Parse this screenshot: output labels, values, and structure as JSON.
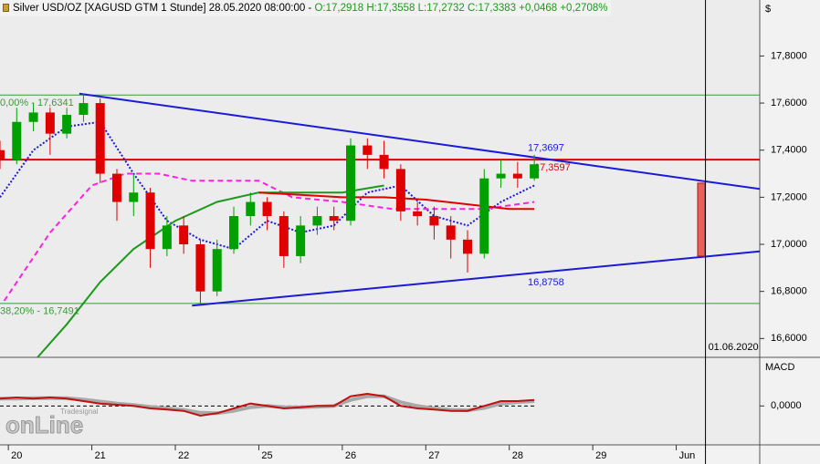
{
  "header": {
    "instrument": "Silver USD/OZ [XAGUSD GTM  1 Stunde] 28.05.2020 08:00:00 -",
    "quote": "O:17,2918 H:17,3558 L:17,2732 C:17,3383 +0,0468 +0,2708%"
  },
  "watermark": {
    "brand": "Tradesignal",
    "name": "onLine"
  },
  "chart_data": [
    {
      "type": "candlestick",
      "y_axis_title": "$",
      "x": [
        -0.1,
        0.1,
        0.3,
        0.5,
        0.7,
        0.9,
        1.1,
        1.3,
        1.5,
        1.7,
        1.9,
        2.1,
        2.3,
        2.5,
        2.7,
        2.9,
        3.1,
        3.3,
        3.5,
        3.7,
        3.9,
        4.1,
        4.3,
        4.5,
        4.7,
        4.9,
        5.1,
        5.3,
        5.5,
        5.7,
        5.9,
        6.1,
        6.3
      ],
      "open": [
        17.4,
        17.36,
        17.52,
        17.56,
        17.47,
        17.55,
        17.6,
        17.3,
        17.18,
        17.22,
        16.98,
        17.08,
        17.0,
        16.8,
        16.98,
        17.12,
        17.18,
        17.12,
        16.95,
        17.08,
        17.12,
        17.1,
        17.42,
        17.38,
        17.32,
        17.14,
        17.12,
        17.08,
        17.02,
        16.96,
        17.28,
        17.3,
        17.28
      ],
      "high": [
        17.44,
        17.58,
        17.6,
        17.58,
        17.58,
        17.64,
        17.62,
        17.32,
        17.3,
        17.24,
        17.12,
        17.12,
        17.02,
        17.02,
        17.16,
        17.22,
        17.2,
        17.14,
        17.12,
        17.16,
        17.16,
        17.45,
        17.45,
        17.44,
        17.34,
        17.18,
        17.16,
        17.12,
        17.06,
        17.32,
        17.36,
        17.35,
        17.38
      ],
      "low": [
        17.32,
        17.34,
        17.48,
        17.38,
        17.45,
        17.52,
        17.26,
        17.1,
        17.12,
        16.9,
        16.95,
        16.96,
        16.75,
        16.78,
        16.96,
        17.08,
        17.06,
        16.9,
        16.92,
        17.04,
        17.06,
        17.08,
        17.32,
        17.28,
        17.1,
        17.08,
        17.02,
        16.94,
        16.88,
        16.94,
        17.24,
        17.24,
        17.27
      ],
      "close": [
        17.36,
        17.52,
        17.56,
        17.47,
        17.55,
        17.6,
        17.3,
        17.18,
        17.22,
        16.98,
        17.08,
        17.0,
        16.8,
        16.98,
        17.12,
        17.18,
        17.12,
        16.95,
        17.08,
        17.12,
        17.1,
        17.42,
        17.38,
        17.32,
        17.14,
        17.12,
        17.08,
        17.02,
        16.96,
        17.28,
        17.3,
        17.28,
        17.34
      ],
      "up_color": "#00a000",
      "down_color": "#e00000",
      "xlim": [
        -0.1,
        9.0
      ],
      "xticks": [
        {
          "value": 0,
          "label": "20"
        },
        {
          "value": 1,
          "label": "21"
        },
        {
          "value": 2,
          "label": "22"
        },
        {
          "value": 3,
          "label": "25"
        },
        {
          "value": 4,
          "label": "26"
        },
        {
          "value": 5,
          "label": "27"
        },
        {
          "value": 6,
          "label": "28"
        },
        {
          "value": 7,
          "label": "29"
        },
        {
          "value": 8,
          "label": "Jun"
        }
      ],
      "ylim": [
        16.52,
        18.03
      ],
      "yticks": [
        {
          "value": 17.8,
          "label": "17,8000"
        },
        {
          "value": 17.6,
          "label": "17,6000"
        },
        {
          "value": 17.4,
          "label": "17,4000"
        },
        {
          "value": 17.2,
          "label": "17,2000"
        },
        {
          "value": 17.0,
          "label": "17,0000"
        },
        {
          "value": 16.8,
          "label": "16,8000"
        },
        {
          "value": 16.6,
          "label": "16,6000"
        }
      ],
      "overlays": [
        {
          "color": "#1a1ad8",
          "dash": "dotted",
          "x": [
            -0.1,
            0.3,
            0.7,
            1.1,
            1.5,
            1.9,
            2.3,
            2.7,
            3.1,
            3.5,
            3.9,
            4.3,
            4.7,
            5.1,
            5.5,
            5.9,
            6.3
          ],
          "values": [
            17.2,
            17.4,
            17.5,
            17.52,
            17.3,
            17.1,
            17.02,
            16.98,
            17.1,
            17.05,
            17.08,
            17.22,
            17.25,
            17.12,
            17.08,
            17.18,
            17.25
          ]
        },
        {
          "color": "#ff20e0",
          "dash": "dashed",
          "x": [
            -0.05,
            0.5,
            1.0,
            1.4,
            1.8,
            2.2,
            3.0,
            3.4,
            4.0,
            4.6,
            5.1,
            5.7,
            6.3
          ],
          "values": [
            16.76,
            17.05,
            17.25,
            17.3,
            17.3,
            17.27,
            17.27,
            17.2,
            17.18,
            17.15,
            17.15,
            17.15,
            17.18
          ]
        },
        {
          "color": "#1a9a1a",
          "dash": "solid",
          "x": [
            0.35,
            0.7,
            1.1,
            1.5,
            2.0,
            2.5,
            3.0,
            3.5,
            4.0,
            4.5
          ],
          "values": [
            16.52,
            16.66,
            16.84,
            16.98,
            17.1,
            17.18,
            17.22,
            17.22,
            17.22,
            17.25
          ]
        },
        {
          "color": "#e00000",
          "dash": "solid",
          "x": [
            3.0,
            3.5,
            4.0,
            4.5,
            5.0,
            5.5,
            6.0,
            6.3
          ],
          "values": [
            17.22,
            17.21,
            17.2,
            17.2,
            17.19,
            17.17,
            17.15,
            17.15
          ]
        }
      ],
      "levels": [
        {
          "value": 17.6341,
          "label": "0,00% - 17,6341",
          "color": "#3a9a3a",
          "label_side": "left"
        },
        {
          "value": 16.7491,
          "label": "38,20% - 16,7491",
          "color": "#3a9a3a",
          "label_side": "left"
        },
        {
          "value": 17.3597,
          "label": "17,3597",
          "color": "#e00000",
          "label_side": "right"
        }
      ],
      "trendlines": [
        {
          "x": [
            0.85,
            9.0
          ],
          "values": [
            17.64,
            17.235
          ],
          "label": "17,3697",
          "color": "#1a1ad8",
          "label_side": "above"
        },
        {
          "x": [
            2.2,
            9.0
          ],
          "values": [
            16.74,
            16.97
          ],
          "label": "16,8758",
          "color": "#1a1ad8",
          "label_side": "below"
        }
      ],
      "marker": {
        "x": 8.35,
        "label": "01.06.2020",
        "color": "#000000"
      },
      "range_box": {
        "x": 8.3,
        "high": 17.26,
        "low": 16.95,
        "color": "#e8605a"
      }
    },
    {
      "type": "line",
      "y_axis_title": "MACD",
      "x": [
        -0.1,
        0.1,
        0.3,
        0.5,
        0.7,
        0.9,
        1.1,
        1.3,
        1.5,
        1.7,
        1.9,
        2.1,
        2.3,
        2.5,
        2.7,
        2.9,
        3.1,
        3.3,
        3.5,
        3.7,
        3.9,
        4.1,
        4.3,
        4.5,
        4.7,
        4.9,
        5.1,
        5.3,
        5.5,
        5.7,
        5.9,
        6.1,
        6.3
      ],
      "series": [
        {
          "color": "#a8a8a8",
          "values": [
            0.03,
            0.03,
            0.032,
            0.032,
            0.032,
            0.026,
            0.018,
            0.01,
            0.004,
            -0.004,
            -0.01,
            -0.016,
            -0.028,
            -0.03,
            -0.02,
            -0.005,
            0.0,
            -0.005,
            -0.006,
            -0.003,
            0.0,
            0.025,
            0.04,
            0.04,
            0.015,
            0.0,
            -0.01,
            -0.016,
            -0.018,
            -0.008,
            0.01,
            0.016,
            0.02
          ]
        },
        {
          "color": "#c01010",
          "values": [
            0.03,
            0.035,
            0.03,
            0.035,
            0.03,
            0.02,
            0.01,
            0.005,
            0.0,
            -0.01,
            -0.015,
            -0.02,
            -0.04,
            -0.03,
            -0.01,
            0.01,
            0.0,
            -0.01,
            -0.005,
            0.0,
            0.0,
            0.04,
            0.05,
            0.04,
            0.0,
            -0.01,
            -0.015,
            -0.02,
            -0.02,
            0.0,
            0.02,
            0.02,
            0.025
          ]
        }
      ],
      "ylim": [
        -0.16,
        0.2
      ],
      "yticks": [
        {
          "value": 0,
          "label": "0,0000"
        }
      ],
      "zero_line": true
    }
  ]
}
